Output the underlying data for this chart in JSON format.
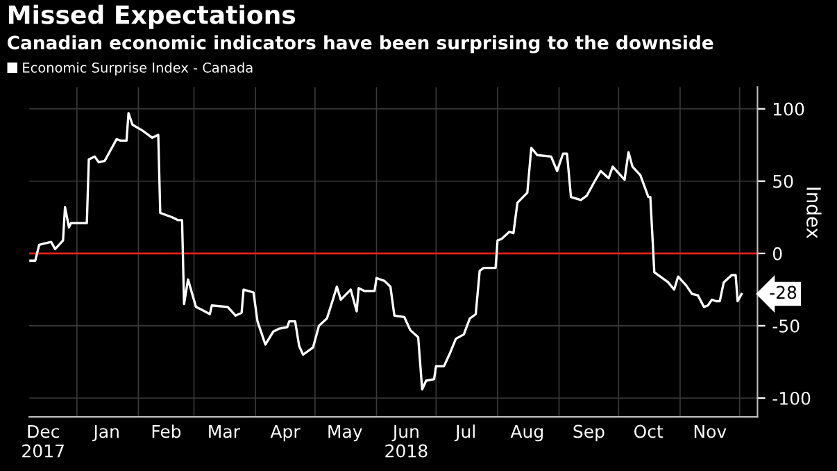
{
  "chart_data": {
    "type": "line",
    "title": "Missed Expectations",
    "subtitle": "Canadian economic indicators have been surprising to the downside",
    "ylabel": "Index",
    "x": [
      "2017-12-08",
      "2017-12-11",
      "2017-12-13",
      "2017-12-19",
      "2017-12-21",
      "2017-12-25",
      "2017-12-26",
      "2017-12-28",
      "2017-12-29",
      "2018-01-06",
      "2018-01-07",
      "2018-01-10",
      "2018-01-12",
      "2018-01-15",
      "2018-01-19",
      "2018-01-21",
      "2018-01-23",
      "2018-01-26",
      "2018-01-27",
      "2018-01-29",
      "2018-02-03",
      "2018-02-08",
      "2018-02-11",
      "2018-02-12",
      "2018-02-18",
      "2018-02-21",
      "2018-02-23",
      "2018-02-24",
      "2018-02-26",
      "2018-03-02",
      "2018-03-05",
      "2018-03-09",
      "2018-03-10",
      "2018-03-18",
      "2018-03-22",
      "2018-03-25",
      "2018-03-26",
      "2018-03-31",
      "2018-04-02",
      "2018-04-06",
      "2018-04-10",
      "2018-04-13",
      "2018-04-17",
      "2018-04-18",
      "2018-04-21",
      "2018-04-23",
      "2018-04-25",
      "2018-04-30",
      "2018-05-03",
      "2018-05-07",
      "2018-05-10",
      "2018-05-12",
      "2018-05-14",
      "2018-05-19",
      "2018-05-22",
      "2018-05-23",
      "2018-05-26",
      "2018-05-31",
      "2018-06-01",
      "2018-06-05",
      "2018-06-08",
      "2018-06-10",
      "2018-06-15",
      "2018-06-18",
      "2018-06-22",
      "2018-06-24",
      "2018-06-26",
      "2018-06-30",
      "2018-07-01",
      "2018-07-05",
      "2018-07-08",
      "2018-07-11",
      "2018-07-15",
      "2018-07-18",
      "2018-07-21",
      "2018-07-23",
      "2018-07-25",
      "2018-07-31",
      "2018-08-01",
      "2018-08-03",
      "2018-08-07",
      "2018-08-09",
      "2018-08-11",
      "2018-08-16",
      "2018-08-18",
      "2018-08-21",
      "2018-08-28",
      "2018-08-31",
      "2018-09-03",
      "2018-09-05",
      "2018-09-07",
      "2018-09-12",
      "2018-09-15",
      "2018-09-19",
      "2018-09-22",
      "2018-09-26",
      "2018-09-28",
      "2018-10-04",
      "2018-10-06",
      "2018-10-08",
      "2018-10-12",
      "2018-10-16",
      "2018-10-17",
      "2018-10-19",
      "2018-10-26",
      "2018-10-29",
      "2018-10-31",
      "2018-11-04",
      "2018-11-07",
      "2018-11-10",
      "2018-11-13",
      "2018-11-15",
      "2018-11-17",
      "2018-11-19",
      "2018-11-21",
      "2018-11-23",
      "2018-11-27",
      "2018-11-29",
      "2018-11-30",
      "2018-12-02"
    ],
    "series": [
      {
        "name": "Economic Surprise Index - Canada",
        "color": "#ffffff",
        "values": [
          -5,
          -5,
          6,
          8,
          3,
          9,
          32,
          18,
          21,
          21,
          65,
          67,
          63,
          64,
          74,
          79,
          78,
          78,
          97,
          89,
          85,
          80,
          82,
          28,
          25,
          23,
          23,
          -35,
          -18,
          -37,
          -39,
          -42,
          -36,
          -37,
          -43,
          -41,
          -25,
          -27,
          -47,
          -63,
          -54,
          -52,
          -51,
          -47,
          -47,
          -64,
          -70,
          -65,
          -50,
          -45,
          -32,
          -23,
          -32,
          -25,
          -40,
          -24,
          -26,
          -26,
          -17,
          -19,
          -23,
          -43,
          -44,
          -53,
          -58,
          -94,
          -88,
          -87,
          -78,
          -78,
          -69,
          -59,
          -56,
          -45,
          -42,
          -12,
          -10,
          -10,
          9,
          10,
          15,
          14,
          35,
          42,
          73,
          68,
          67,
          57,
          69,
          69,
          39,
          37,
          40,
          50,
          57,
          52,
          60,
          51,
          70,
          60,
          54,
          39,
          39,
          -13,
          -20,
          -25,
          -16,
          -22,
          -28,
          -29,
          -37,
          -36,
          -32,
          -33,
          -33,
          -20,
          -15,
          -15,
          -33,
          -28
        ],
        "value_labels": [
          null,
          null,
          null,
          null,
          null,
          null,
          null,
          null,
          null,
          null,
          null,
          null,
          null,
          null,
          null,
          null,
          null,
          null,
          null,
          null,
          null,
          null,
          null,
          null,
          null,
          null,
          null,
          null,
          null,
          null,
          null,
          null,
          null,
          null,
          null,
          null,
          null,
          null,
          null,
          null,
          null,
          null,
          null,
          null,
          null,
          null,
          null,
          null,
          null,
          null,
          null,
          null,
          null,
          null,
          null,
          null,
          null,
          null,
          null,
          null,
          null,
          null,
          null,
          null,
          null,
          null,
          null,
          null,
          null,
          null,
          null,
          null,
          null,
          null,
          null,
          null,
          null,
          null,
          null,
          null,
          null,
          null,
          null,
          null,
          null,
          null,
          null,
          null,
          null,
          null,
          null,
          null,
          null,
          null,
          null,
          null,
          null,
          null,
          null,
          null,
          null,
          null,
          null,
          null,
          null,
          null,
          null,
          null,
          null,
          null,
          null,
          null,
          null,
          null,
          null,
          null,
          null,
          null,
          null,
          "-28"
        ]
      }
    ],
    "xlim": [
      "2017-12-08",
      "2018-12-10"
    ],
    "xticks": [
      {
        "value": "2017-12-15",
        "label": "Dec\n2017"
      },
      {
        "value": "2018-01-16",
        "label": "Jan"
      },
      {
        "value": "2018-02-15",
        "label": "Feb"
      },
      {
        "value": "2018-03-16",
        "label": "Mar"
      },
      {
        "value": "2018-04-16",
        "label": "Apr"
      },
      {
        "value": "2018-05-16",
        "label": "May"
      },
      {
        "value": "2018-06-16",
        "label": "Jun\n2018"
      },
      {
        "value": "2018-07-16",
        "label": "Jul"
      },
      {
        "value": "2018-08-16",
        "label": "Aug"
      },
      {
        "value": "2018-09-16",
        "label": "Sep"
      },
      {
        "value": "2018-10-16",
        "label": "Oct"
      },
      {
        "value": "2018-11-16",
        "label": "Nov"
      },
      {
        "value": "2018-01-01",
        "label": null
      },
      {
        "value": "2018-02-01",
        "label": null
      },
      {
        "value": "2018-03-01",
        "label": null
      },
      {
        "value": "2018-04-01",
        "label": null
      },
      {
        "value": "2018-05-01",
        "label": null
      },
      {
        "value": "2018-06-01",
        "label": null
      },
      {
        "value": "2018-07-01",
        "label": null
      },
      {
        "value": "2018-08-01",
        "label": null
      },
      {
        "value": "2018-09-01",
        "label": null
      },
      {
        "value": "2018-10-01",
        "label": null
      },
      {
        "value": "2018-11-01",
        "label": null
      },
      {
        "value": "2018-12-01",
        "label": null
      }
    ],
    "ylim": [
      -113,
      115
    ],
    "yticks": [
      -100,
      -50,
      0,
      50,
      100
    ],
    "ref_lines": [
      {
        "axis": "y",
        "value": 0,
        "color": "#e8201e"
      }
    ],
    "grid": true,
    "legend": "top left",
    "line_style": "solid",
    "marker": "none"
  }
}
